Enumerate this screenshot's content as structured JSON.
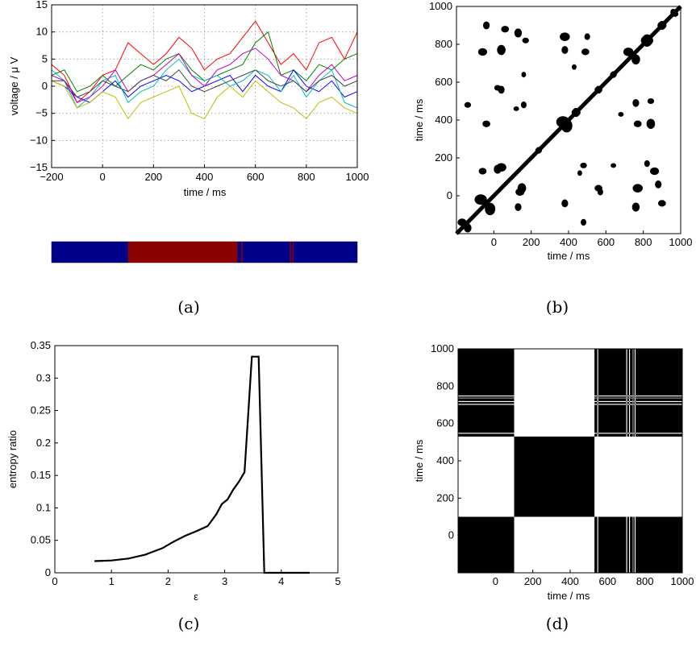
{
  "captions": {
    "a": "(a)",
    "b": "(b)",
    "c": "(c)",
    "d": "(d)"
  },
  "chart_data": [
    {
      "id": "a",
      "type": "line",
      "xlabel": "time / ms",
      "ylabel": "voltage / μ V",
      "xlim": [
        -200,
        1000
      ],
      "ylim": [
        -15,
        15
      ],
      "xticks": [
        -200,
        0,
        200,
        400,
        600,
        800,
        1000
      ],
      "yticks": [
        -15,
        -10,
        -5,
        0,
        5,
        10,
        15
      ],
      "grid": true,
      "x": [
        -200,
        -150,
        -100,
        -50,
        0,
        50,
        100,
        150,
        200,
        250,
        300,
        350,
        400,
        450,
        500,
        550,
        600,
        650,
        700,
        750,
        800,
        850,
        900,
        950,
        1000
      ],
      "series": [
        {
          "color": "#ff0000",
          "values": [
            4,
            2,
            -3,
            -1,
            2,
            3,
            8,
            6,
            4,
            6,
            9,
            7,
            3,
            5,
            6,
            9,
            12,
            8,
            4,
            6,
            3,
            8,
            9,
            5,
            10
          ]
        },
        {
          "color": "#008000",
          "values": [
            2,
            3,
            -1,
            0,
            2,
            0,
            2,
            4,
            3,
            5,
            6,
            3,
            1,
            2,
            3,
            4,
            8,
            10,
            2,
            3,
            1,
            4,
            3,
            5,
            6
          ]
        },
        {
          "color": "#0000ff",
          "values": [
            1,
            0,
            -2,
            -3,
            -1,
            1,
            -2,
            0,
            1,
            2,
            1,
            -1,
            0,
            1,
            2,
            -1,
            2,
            0,
            -1,
            3,
            0,
            -1,
            1,
            -2,
            -1
          ]
        },
        {
          "color": "#00bfbf",
          "values": [
            3,
            1,
            -4,
            -2,
            1,
            2,
            -3,
            -1,
            0,
            3,
            5,
            2,
            1,
            2,
            0,
            1,
            3,
            2,
            -1,
            2,
            -2,
            1,
            3,
            -3,
            -4
          ]
        },
        {
          "color": "#bf00bf",
          "values": [
            2,
            1,
            -3,
            -2,
            0,
            3,
            -1,
            1,
            2,
            4,
            6,
            2,
            0,
            3,
            4,
            6,
            7,
            5,
            2,
            1,
            -1,
            2,
            4,
            1,
            2
          ]
        },
        {
          "color": "#bfbf00",
          "values": [
            1,
            0,
            -4,
            -3,
            -1,
            -2,
            -6,
            -3,
            -2,
            -1,
            0,
            -5,
            -6,
            -2,
            0,
            -2,
            1,
            -1,
            -3,
            -4,
            -6,
            -3,
            -2,
            -4,
            -5
          ]
        },
        {
          "color": "#404040",
          "values": [
            1,
            1,
            -2,
            -1,
            1,
            0,
            -1,
            1,
            2,
            1,
            3,
            0,
            -1,
            0,
            1,
            2,
            3,
            1,
            0,
            1,
            -1,
            1,
            2,
            0,
            1
          ]
        }
      ]
    },
    {
      "id": "a-bar",
      "type": "heatmap",
      "xlim": [
        -200,
        1000
      ],
      "base_color": "#00008b",
      "highlight_color": "#8b0000",
      "segments": [
        [
          100,
          530
        ],
        [
          545,
          550
        ],
        [
          735,
          738
        ],
        [
          745,
          750
        ]
      ]
    },
    {
      "id": "b",
      "type": "heatmap",
      "xlabel": "time / ms",
      "ylabel": "time / ms",
      "xlim": [
        -200,
        1000
      ],
      "ylim": [
        -200,
        1000
      ],
      "xticks": [
        0,
        200,
        400,
        600,
        800,
        1000
      ],
      "yticks": [
        0,
        200,
        400,
        600,
        800,
        1000
      ],
      "blobs": [
        {
          "x": -170,
          "y": -140,
          "r": 40
        },
        {
          "x": -70,
          "y": -20,
          "r": 55
        },
        {
          "x": -60,
          "y": 130,
          "r": 35
        },
        {
          "x": 40,
          "y": 150,
          "r": 45
        },
        {
          "x": 140,
          "y": 20,
          "r": 40
        },
        {
          "x": 370,
          "y": 390,
          "r": 60
        },
        {
          "x": 440,
          "y": 440,
          "r": 40
        },
        {
          "x": 240,
          "y": 240,
          "r": 30
        },
        {
          "x": 560,
          "y": 560,
          "r": 35
        },
        {
          "x": 640,
          "y": 640,
          "r": 30
        },
        {
          "x": 720,
          "y": 760,
          "r": 45
        },
        {
          "x": 820,
          "y": 820,
          "r": 55
        },
        {
          "x": 900,
          "y": 900,
          "r": 40
        },
        {
          "x": 970,
          "y": 960,
          "r": 30
        },
        {
          "x": -60,
          "y": 760,
          "r": 40
        },
        {
          "x": 60,
          "y": 880,
          "r": 35
        },
        {
          "x": 170,
          "y": 820,
          "r": 30
        },
        {
          "x": 380,
          "y": 840,
          "r": 45
        },
        {
          "x": 490,
          "y": 760,
          "r": 35
        },
        {
          "x": -140,
          "y": 480,
          "r": 30
        },
        {
          "x": -40,
          "y": 380,
          "r": 35
        },
        {
          "x": 20,
          "y": 570,
          "r": 30
        },
        {
          "x": 770,
          "y": 380,
          "r": 35
        },
        {
          "x": 840,
          "y": 500,
          "r": 30
        },
        {
          "x": 770,
          "y": 40,
          "r": 45
        },
        {
          "x": 860,
          "y": 130,
          "r": 40
        },
        {
          "x": 560,
          "y": 40,
          "r": 35
        },
        {
          "x": 480,
          "y": 160,
          "r": 30
        },
        {
          "x": 900,
          "y": -40,
          "r": 35
        },
        {
          "x": 640,
          "y": 160,
          "r": 25
        },
        {
          "x": 120,
          "y": 460,
          "r": 25
        },
        {
          "x": 680,
          "y": 430,
          "r": 25
        }
      ]
    },
    {
      "id": "c",
      "type": "line",
      "xlabel": "ε",
      "ylabel": "entropy ratio",
      "xlim": [
        0,
        5
      ],
      "ylim": [
        0,
        0.35
      ],
      "xticks": [
        0,
        1,
        2,
        3,
        4,
        5
      ],
      "yticks": [
        0,
        0.05,
        0.1,
        0.15,
        0.2,
        0.25,
        0.3,
        0.35
      ],
      "tick_labels_y": [
        "0",
        "0.05",
        "0.1",
        "0.15",
        "0.2",
        "0.25",
        "0.3",
        "0.35"
      ],
      "x": [
        0.7,
        1.0,
        1.3,
        1.6,
        1.9,
        2.1,
        2.3,
        2.5,
        2.7,
        2.85,
        2.95,
        3.05,
        3.15,
        3.25,
        3.35,
        3.48,
        3.6,
        3.7,
        4.5
      ],
      "values": [
        0.018,
        0.019,
        0.022,
        0.028,
        0.038,
        0.048,
        0.057,
        0.064,
        0.072,
        0.09,
        0.106,
        0.113,
        0.128,
        0.14,
        0.155,
        0.333,
        0.333,
        0.0,
        0.0
      ]
    },
    {
      "id": "d",
      "type": "heatmap",
      "xlabel": "time / ms",
      "ylabel": "time / ms",
      "xlim": [
        -200,
        1000
      ],
      "ylim": [
        -200,
        1000
      ],
      "xticks": [
        0,
        200,
        400,
        600,
        800,
        1000
      ],
      "yticks": [
        0,
        200,
        400,
        600,
        800,
        1000
      ],
      "boundaries": [
        -200,
        100,
        530,
        545,
        550,
        700,
        705,
        715,
        720,
        735,
        738,
        745,
        750,
        1000
      ],
      "labels": [
        0,
        1,
        0,
        2,
        0,
        2,
        0,
        2,
        0,
        2,
        0,
        2,
        0
      ]
    }
  ]
}
